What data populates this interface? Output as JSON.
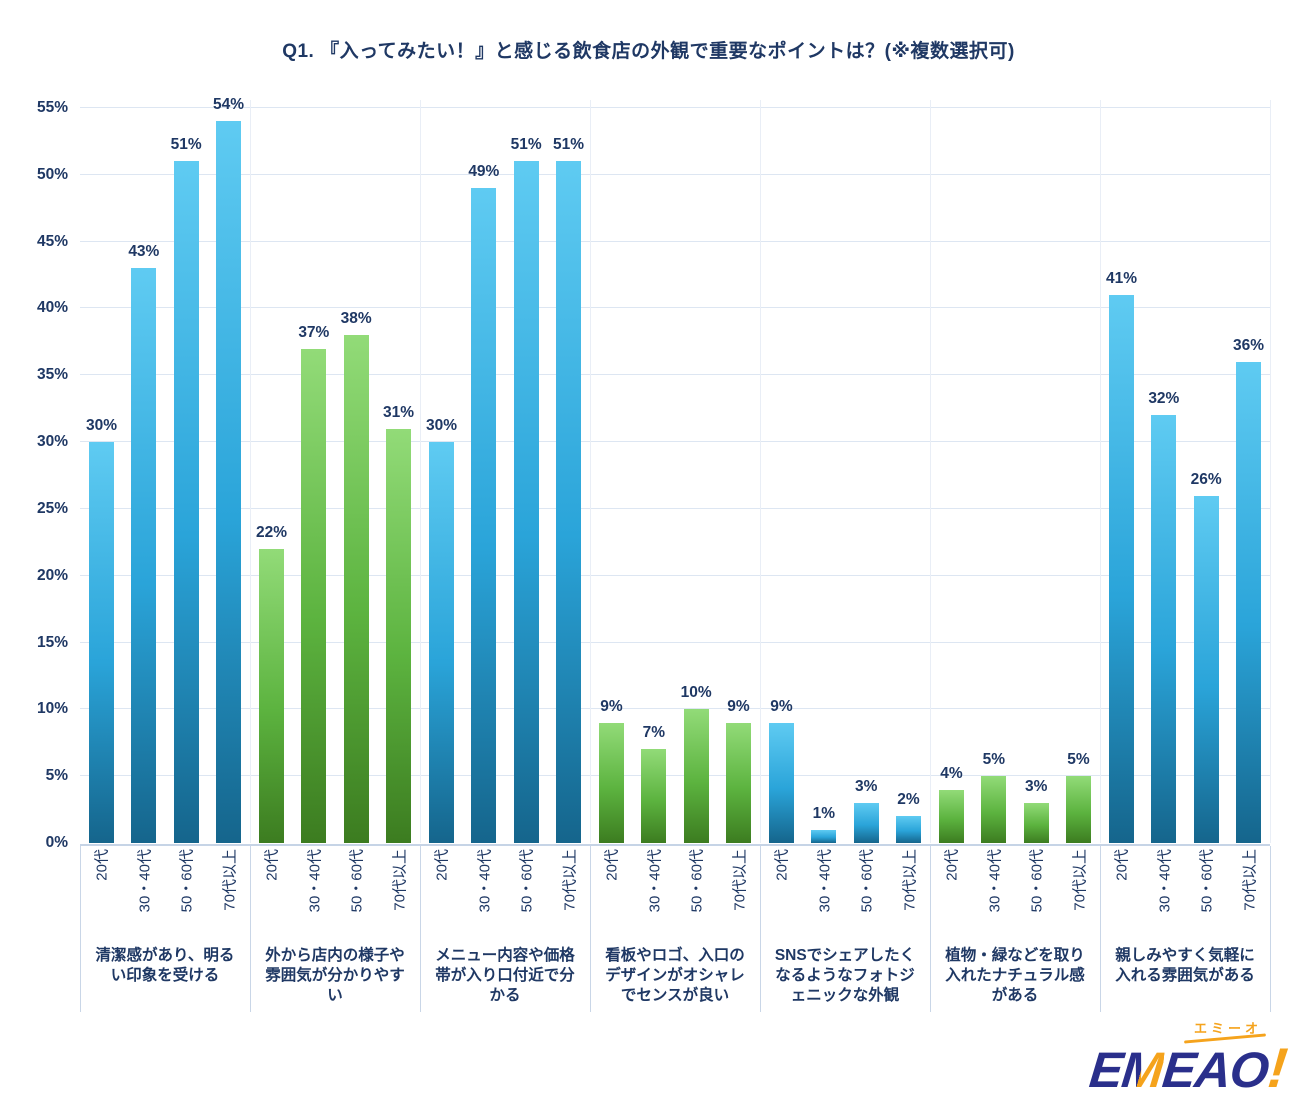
{
  "title": "Q1. 『入ってみたい！』と感じる飲食店の外観で重要なポイントは？(※複数選択可)",
  "text_color": "#1f3864",
  "chart_data": {
    "type": "bar",
    "title": "Q1. 『入ってみたい！』と感じる飲食店の外観で重要なポイントは？(※複数選択可)",
    "ylim": [
      0,
      55
    ],
    "y_ticks": [
      "0%",
      "5%",
      "10%",
      "15%",
      "20%",
      "25%",
      "30%",
      "35%",
      "40%",
      "45%",
      "50%",
      "55%"
    ],
    "grid": true,
    "legend": "none",
    "value_label_suffix": "%",
    "age_categories": [
      "20代",
      "30・40代",
      "50・60代",
      "70代以上"
    ],
    "groups": [
      {
        "label": "清潔感があり、明るい印象を受ける",
        "color": "blue",
        "values": [
          30,
          43,
          51,
          54
        ]
      },
      {
        "label": "外から店内の様子や雰囲気が分かりやすい",
        "color": "green",
        "values": [
          22,
          37,
          38,
          31
        ]
      },
      {
        "label": "メニュー内容や価格帯が入り口付近で分かる",
        "color": "blue",
        "values": [
          30,
          49,
          51,
          51
        ]
      },
      {
        "label": "看板やロゴ、入口のデザインがオシャレでセンスが良い",
        "color": "green",
        "values": [
          9,
          7,
          10,
          9
        ]
      },
      {
        "label": "SNSでシェアしたくなるようなフォトジェニックな外観",
        "color": "blue",
        "values": [
          9,
          1,
          3,
          2
        ]
      },
      {
        "label": "植物・緑などを取り入れたナチュラル感がある",
        "color": "green",
        "values": [
          4,
          5,
          3,
          5
        ]
      },
      {
        "label": "親しみやすく気軽に入れる雰囲気がある",
        "color": "blue",
        "values": [
          41,
          32,
          26,
          36
        ]
      }
    ],
    "colors": {
      "blue_top": "#5fcbf2",
      "blue_mid": "#2aa4d9",
      "blue_bottom": "#15658c",
      "green_top": "#92db78",
      "green_mid": "#5cb33f",
      "green_bottom": "#3c7c20",
      "gridline": "#dde6f2"
    }
  },
  "logo": {
    "text": "EMEAO!",
    "ruby": "エミーオ",
    "navy_color": "#2a2f8b",
    "orange_color": "#f5a31c"
  }
}
